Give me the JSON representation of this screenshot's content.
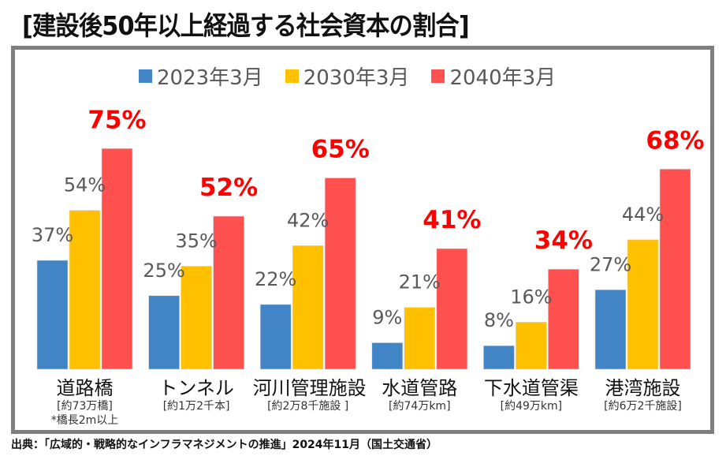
{
  "title": "[建設後50年以上経過する社会資本の割合]",
  "source": "出典：「広域的・戦略的なインフラマネジメントの推進」2024年11月（国土交通省）",
  "chart_data": {
    "type": "bar",
    "title": "[建設後50年以上経過する社会資本の割合]",
    "xlabel": "",
    "ylabel": "",
    "ylim": [
      0,
      80
    ],
    "grid": false,
    "legend": "top",
    "categories": [
      "道路橋",
      "トンネル",
      "河川管理施設",
      "水道管路",
      "下水道管渠",
      "港湾施設"
    ],
    "category_notes": [
      [
        "[約73万橋]",
        "*橋長2m以上"
      ],
      [
        "[約1万2千本]"
      ],
      [
        "[約2万8千施設 ]"
      ],
      [
        "[約74万km]"
      ],
      [
        "[約49万km]"
      ],
      [
        "[約6万2千施設]"
      ]
    ],
    "series": [
      {
        "name": "2023年3月",
        "color": "#4285c7",
        "label_color": "#595959",
        "values": [
          37,
          25,
          22,
          9,
          8,
          27
        ],
        "labels": [
          "37%",
          "25%",
          "22%",
          "9%",
          "8%",
          "27%"
        ]
      },
      {
        "name": "2030年3月",
        "color": "#ffc000",
        "label_color": "#595959",
        "values": [
          54,
          35,
          42,
          21,
          16,
          44
        ],
        "labels": [
          "54%",
          "35%",
          "42%",
          "21%",
          "16%",
          "44%"
        ]
      },
      {
        "name": "2040年3月",
        "color": "#ff5050",
        "label_color": "#ff0000",
        "values": [
          75,
          52,
          65,
          41,
          34,
          68
        ],
        "labels": [
          "75%",
          "52%",
          "65%",
          "41%",
          "34%",
          "68%"
        ]
      }
    ]
  }
}
